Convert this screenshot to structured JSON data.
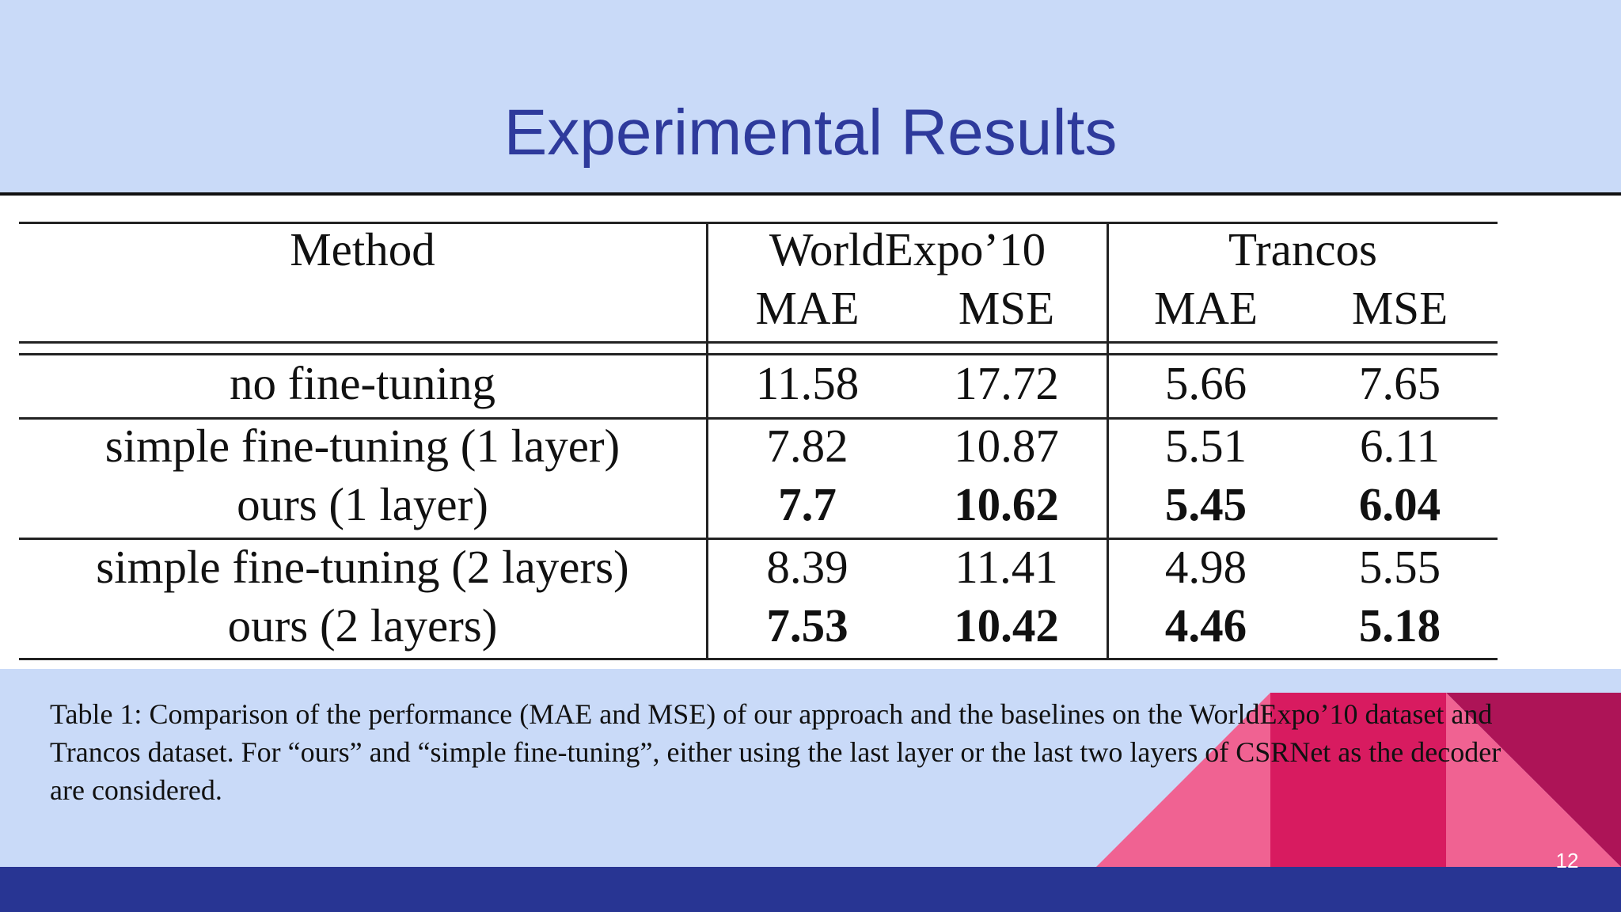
{
  "slide": {
    "title": "Experimental Results",
    "slide_number": "12",
    "colors": {
      "background": "#c9daf8",
      "title": "#2e3a9c",
      "footer_bar": "#283593",
      "accent_pink": "#f06292",
      "accent_magenta": "#d81b60",
      "accent_maroon": "#ad1457"
    }
  },
  "table": {
    "header": {
      "method": "Method",
      "group1": "WorldExpo’10",
      "group2": "Trancos",
      "mae1": "MAE",
      "mse1": "MSE",
      "mae2": "MAE",
      "mse2": "MSE"
    },
    "rows": [
      {
        "method": "no fine-tuning",
        "we_mae": "11.58",
        "we_mse": "17.72",
        "tr_mae": "5.66",
        "tr_mse": "7.65",
        "bold": false
      },
      {
        "method": "simple fine-tuning (1 layer)",
        "we_mae": "7.82",
        "we_mse": "10.87",
        "tr_mae": "5.51",
        "tr_mse": "6.11",
        "bold": false
      },
      {
        "method": "ours (1 layer)",
        "we_mae": "7.7",
        "we_mse": "10.62",
        "tr_mae": "5.45",
        "tr_mse": "6.04",
        "bold": true
      },
      {
        "method": "simple fine-tuning (2 layers)",
        "we_mae": "8.39",
        "we_mse": "11.41",
        "tr_mae": "4.98",
        "tr_mse": "5.55",
        "bold": false
      },
      {
        "method": "ours (2 layers)",
        "we_mae": "7.53",
        "we_mse": "10.42",
        "tr_mae": "4.46",
        "tr_mse": "5.18",
        "bold": true
      }
    ]
  },
  "caption": "Table 1: Comparison of the performance (MAE and MSE) of our approach and the baselines on the WorldExpo’10 dataset and Trancos dataset. For “ours” and “simple fine-tuning”, either using the last layer or the last two layers of CSRNet as the decoder are considered."
}
